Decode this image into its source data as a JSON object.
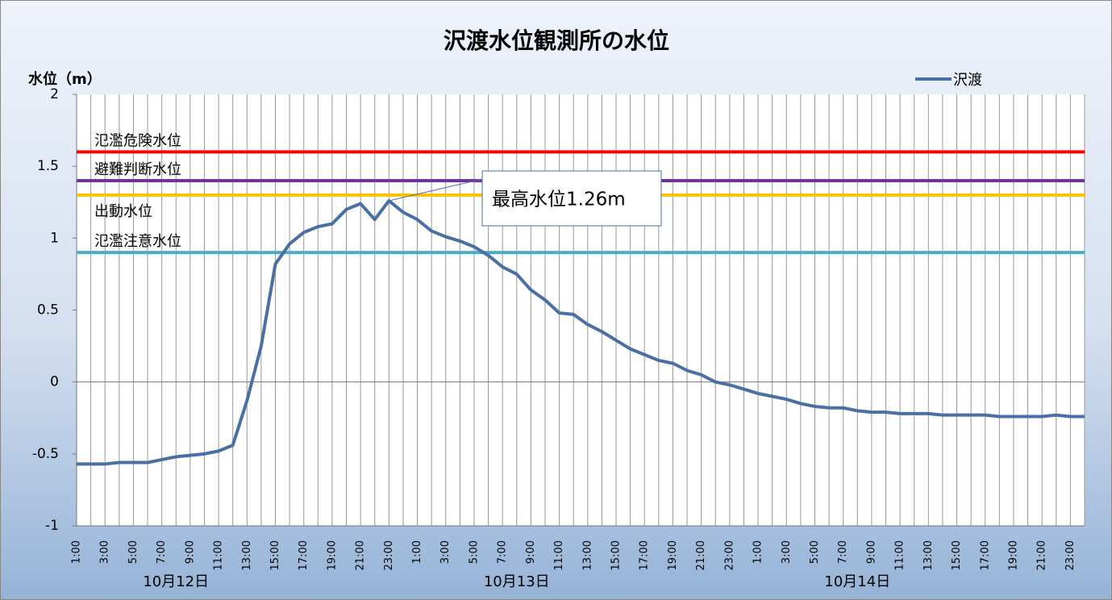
{
  "chart_data": {
    "type": "line",
    "title": "沢渡水位観測所の水位",
    "y_label": "水位（m）",
    "categories": [
      "1:00",
      null,
      "3:00",
      null,
      "5:00",
      null,
      "7:00",
      null,
      "9:00",
      null,
      "11:00",
      null,
      "13:00",
      null,
      "15:00",
      null,
      "17:00",
      null,
      "19:00",
      null,
      "21:00",
      null,
      "23:00",
      null,
      "1:00",
      null,
      "3:00",
      null,
      "5:00",
      null,
      "7:00",
      null,
      "9:00",
      null,
      "11:00",
      null,
      "13:00",
      null,
      "15:00",
      null,
      "17:00",
      null,
      "19:00",
      null,
      "21:00",
      null,
      "23:00",
      null,
      "1:00",
      null,
      "3:00",
      null,
      "5:00",
      null,
      "7:00",
      null,
      "9:00",
      null,
      "11:00",
      null,
      "13:00",
      null,
      "15:00",
      null,
      "17:00",
      null,
      "19:00",
      null,
      "21:00",
      null,
      "23:00",
      null
    ],
    "groups": [
      "10月12日",
      "10月13日",
      "10月14日"
    ],
    "series": [
      {
        "name": "沢渡",
        "color": "#4a6fa5",
        "values": [
          -0.57,
          -0.57,
          -0.57,
          -0.56,
          -0.56,
          -0.56,
          -0.54,
          -0.52,
          -0.51,
          -0.5,
          -0.48,
          -0.44,
          -0.13,
          0.25,
          0.82,
          0.96,
          1.04,
          1.08,
          1.1,
          1.2,
          1.24,
          1.13,
          1.26,
          1.18,
          1.13,
          1.05,
          1.01,
          0.98,
          0.94,
          0.88,
          0.8,
          0.75,
          0.64,
          0.57,
          0.48,
          0.47,
          0.4,
          0.35,
          0.29,
          0.23,
          0.19,
          0.15,
          0.13,
          0.08,
          0.05,
          0.0,
          -0.02,
          -0.05,
          -0.08,
          -0.1,
          -0.12,
          -0.15,
          -0.17,
          -0.18,
          -0.18,
          -0.2,
          -0.21,
          -0.21,
          -0.22,
          -0.22,
          -0.22,
          -0.23,
          -0.23,
          -0.23,
          -0.23,
          -0.24,
          -0.24,
          -0.24,
          -0.24,
          -0.23,
          -0.24,
          -0.24
        ]
      }
    ],
    "reference_lines": [
      {
        "name": "氾濫危険水位",
        "value": 1.6,
        "color": "#ff0000"
      },
      {
        "name": "避難判断水位",
        "value": 1.4,
        "color": "#7030a0"
      },
      {
        "name": "出動水位",
        "value": 1.3,
        "color": "#ffc000"
      },
      {
        "name": "氾濫注意水位",
        "value": 0.9,
        "color": "#4bacc6"
      }
    ],
    "annotation": "最高水位1.26m",
    "ylim": [
      -1,
      2
    ],
    "yticks": [
      -1,
      -0.5,
      0,
      0.5,
      1,
      1.5,
      2
    ],
    "grid": "x",
    "legend": "top-right"
  }
}
